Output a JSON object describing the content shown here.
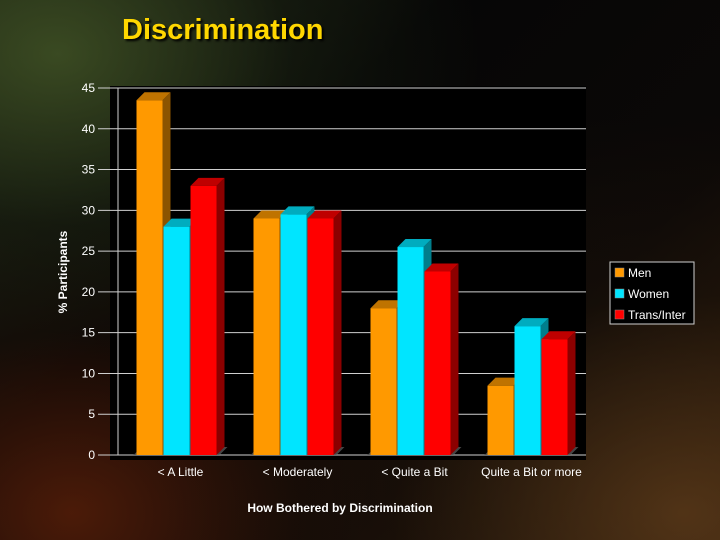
{
  "slide": {
    "title": "Discrimination"
  },
  "chart_data": {
    "type": "bar",
    "title": "",
    "xlabel": "How Bothered by Discrimination",
    "ylabel": "% Participants",
    "categories": [
      "< A Little",
      "< Moderately",
      "< Quite a Bit",
      "Quite a Bit or more"
    ],
    "series": [
      {
        "name": "Men",
        "color": "#ff9900",
        "values": [
          43.5,
          29,
          18,
          8.5
        ]
      },
      {
        "name": "Women",
        "color": "#00e5ff",
        "values": [
          28,
          29.5,
          25.5,
          15.8
        ]
      },
      {
        "name": "Trans/Inter",
        "color": "#ff0000",
        "values": [
          33,
          29,
          22.5,
          14.2
        ]
      }
    ],
    "ylim": [
      0,
      45
    ],
    "yticks": [
      0,
      5,
      10,
      15,
      20,
      25,
      30,
      35,
      40,
      45
    ],
    "ytick_labels": [
      "0",
      "5",
      "10",
      "15",
      "20",
      "25",
      "30",
      "35",
      "40",
      "45"
    ],
    "grid": true,
    "legend_position": "right",
    "style": "3d-bars"
  }
}
